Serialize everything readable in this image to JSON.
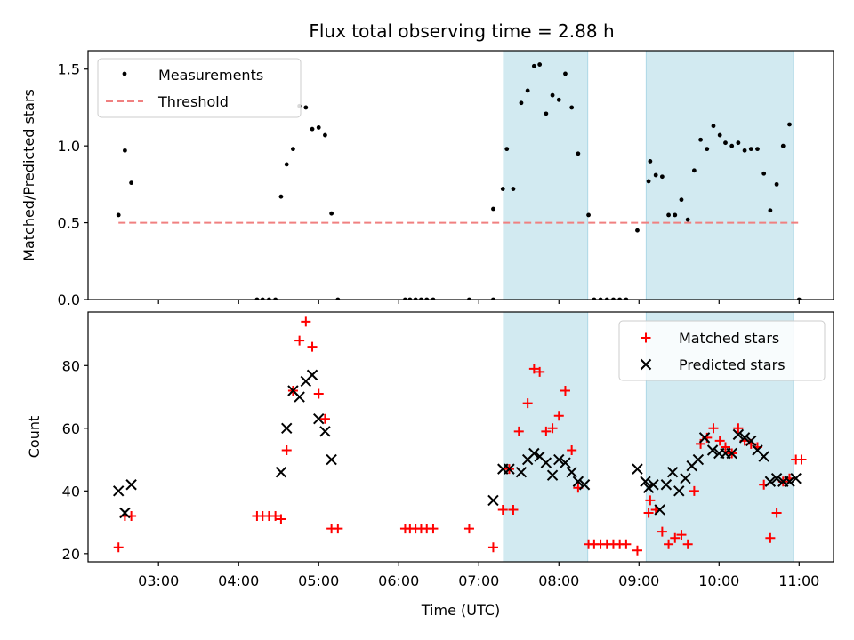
{
  "title": "Flux total observing time = 2.88 h",
  "colors": {
    "shade": "#add8e6",
    "threshold": "#f08080",
    "measurement": "#000000",
    "matched": "#ff0000",
    "predicted": "#000000"
  },
  "chart_data": [
    {
      "type": "scatter",
      "ylabel": "Matched/Predicted stars",
      "xlabel": "",
      "xlim": [
        2.12,
        11.43
      ],
      "ylim": [
        0,
        1.62
      ],
      "yticks": [
        {
          "value": 0.0,
          "label": "0.0"
        },
        {
          "value": 0.5,
          "label": "0.5"
        },
        {
          "value": 1.0,
          "label": "1.0"
        },
        {
          "value": 1.5,
          "label": "1.5"
        }
      ],
      "shaded_intervals": [
        [
          7.31,
          8.36
        ],
        [
          9.09,
          10.93
        ]
      ],
      "legend": {
        "placement": "top-left",
        "entries": [
          "Measurements",
          "Threshold"
        ]
      },
      "threshold": {
        "name": "Threshold",
        "value": 0.5,
        "x_range": [
          2.5,
          11.0
        ]
      },
      "series": [
        {
          "name": "Measurements",
          "marker": "dot",
          "points": [
            [
              2.5,
              0.55
            ],
            [
              2.58,
              0.97
            ],
            [
              2.66,
              0.76
            ],
            [
              4.23,
              0.0
            ],
            [
              4.3,
              0.0
            ],
            [
              4.38,
              0.0
            ],
            [
              4.46,
              0.0
            ],
            [
              4.53,
              0.67
            ],
            [
              4.6,
              0.88
            ],
            [
              4.68,
              0.98
            ],
            [
              4.76,
              1.26
            ],
            [
              4.84,
              1.25
            ],
            [
              4.92,
              1.11
            ],
            [
              5.0,
              1.12
            ],
            [
              5.08,
              1.07
            ],
            [
              5.16,
              0.56
            ],
            [
              5.24,
              0.0
            ],
            [
              6.08,
              0.0
            ],
            [
              6.14,
              0.0
            ],
            [
              6.21,
              0.0
            ],
            [
              6.28,
              0.0
            ],
            [
              6.35,
              0.0
            ],
            [
              6.43,
              0.0
            ],
            [
              6.88,
              0.0
            ],
            [
              7.18,
              0.59
            ],
            [
              7.18,
              0.0
            ],
            [
              7.3,
              0.72
            ],
            [
              7.35,
              0.98
            ],
            [
              7.43,
              0.72
            ],
            [
              7.53,
              1.28
            ],
            [
              7.61,
              1.36
            ],
            [
              7.69,
              1.52
            ],
            [
              7.76,
              1.53
            ],
            [
              7.84,
              1.21
            ],
            [
              7.92,
              1.33
            ],
            [
              8.0,
              1.3
            ],
            [
              8.08,
              1.47
            ],
            [
              8.16,
              1.25
            ],
            [
              8.24,
              0.95
            ],
            [
              8.37,
              0.55
            ],
            [
              8.44,
              0.0
            ],
            [
              8.52,
              0.0
            ],
            [
              8.6,
              0.0
            ],
            [
              8.68,
              0.0
            ],
            [
              8.76,
              0.0
            ],
            [
              8.84,
              0.0
            ],
            [
              8.98,
              0.45
            ],
            [
              9.12,
              0.77
            ],
            [
              9.14,
              0.9
            ],
            [
              9.21,
              0.81
            ],
            [
              9.29,
              0.8
            ],
            [
              9.37,
              0.55
            ],
            [
              9.45,
              0.55
            ],
            [
              9.53,
              0.65
            ],
            [
              9.61,
              0.52
            ],
            [
              9.69,
              0.84
            ],
            [
              9.77,
              1.04
            ],
            [
              9.85,
              0.98
            ],
            [
              9.93,
              1.13
            ],
            [
              10.01,
              1.07
            ],
            [
              10.08,
              1.02
            ],
            [
              10.16,
              1.0
            ],
            [
              10.24,
              1.02
            ],
            [
              10.32,
              0.97
            ],
            [
              10.4,
              0.98
            ],
            [
              10.48,
              0.98
            ],
            [
              10.56,
              0.82
            ],
            [
              10.64,
              0.58
            ],
            [
              10.72,
              0.75
            ],
            [
              10.8,
              1.0
            ],
            [
              10.88,
              1.14
            ],
            [
              11.0,
              0.0
            ]
          ]
        }
      ]
    },
    {
      "type": "scatter",
      "ylabel": "Count",
      "xlabel": "Time (UTC)",
      "xlim": [
        2.12,
        11.43
      ],
      "ylim": [
        17.4,
        97.1
      ],
      "yticks": [
        {
          "value": 20,
          "label": "20"
        },
        {
          "value": 40,
          "label": "40"
        },
        {
          "value": 60,
          "label": "60"
        },
        {
          "value": 80,
          "label": "80"
        }
      ],
      "xticks": [
        {
          "value": 3,
          "label": "03:00"
        },
        {
          "value": 4,
          "label": "04:00"
        },
        {
          "value": 5,
          "label": "05:00"
        },
        {
          "value": 6,
          "label": "06:00"
        },
        {
          "value": 7,
          "label": "07:00"
        },
        {
          "value": 8,
          "label": "08:00"
        },
        {
          "value": 9,
          "label": "09:00"
        },
        {
          "value": 10,
          "label": "10:00"
        },
        {
          "value": 11,
          "label": "11:00"
        }
      ],
      "shaded_intervals": [
        [
          7.31,
          8.36
        ],
        [
          9.09,
          10.93
        ]
      ],
      "legend": {
        "placement": "top-right",
        "entries": [
          "Matched stars",
          "Predicted stars"
        ]
      },
      "series": [
        {
          "name": "Matched stars",
          "marker": "plus",
          "points": [
            [
              2.5,
              22
            ],
            [
              2.58,
              32
            ],
            [
              2.66,
              32
            ],
            [
              4.23,
              32
            ],
            [
              4.3,
              32
            ],
            [
              4.38,
              32
            ],
            [
              4.46,
              32
            ],
            [
              4.53,
              31
            ],
            [
              4.6,
              53
            ],
            [
              4.68,
              72
            ],
            [
              4.76,
              88
            ],
            [
              4.84,
              94
            ],
            [
              4.92,
              86
            ],
            [
              5.0,
              71
            ],
            [
              5.08,
              63
            ],
            [
              5.16,
              28
            ],
            [
              5.24,
              28
            ],
            [
              6.08,
              28
            ],
            [
              6.14,
              28
            ],
            [
              6.21,
              28
            ],
            [
              6.28,
              28
            ],
            [
              6.35,
              28
            ],
            [
              6.43,
              28
            ],
            [
              6.88,
              28
            ],
            [
              7.18,
              22
            ],
            [
              7.3,
              34
            ],
            [
              7.38,
              47
            ],
            [
              7.43,
              34
            ],
            [
              7.5,
              59
            ],
            [
              7.61,
              68
            ],
            [
              7.69,
              79
            ],
            [
              7.76,
              78
            ],
            [
              7.84,
              59
            ],
            [
              7.92,
              60
            ],
            [
              8.0,
              64
            ],
            [
              8.08,
              72
            ],
            [
              8.16,
              53
            ],
            [
              8.24,
              41
            ],
            [
              8.37,
              23
            ],
            [
              8.44,
              23
            ],
            [
              8.52,
              23
            ],
            [
              8.6,
              23
            ],
            [
              8.68,
              23
            ],
            [
              8.76,
              23
            ],
            [
              8.84,
              23
            ],
            [
              8.98,
              21
            ],
            [
              9.12,
              33
            ],
            [
              9.14,
              37
            ],
            [
              9.21,
              34
            ],
            [
              9.29,
              27
            ],
            [
              9.37,
              23
            ],
            [
              9.45,
              25
            ],
            [
              9.53,
              26
            ],
            [
              9.61,
              23
            ],
            [
              9.69,
              40
            ],
            [
              9.77,
              55
            ],
            [
              9.85,
              57
            ],
            [
              9.93,
              60
            ],
            [
              10.01,
              56
            ],
            [
              10.08,
              54
            ],
            [
              10.16,
              52
            ],
            [
              10.24,
              60
            ],
            [
              10.32,
              56
            ],
            [
              10.4,
              55
            ],
            [
              10.48,
              54
            ],
            [
              10.56,
              42
            ],
            [
              10.64,
              25
            ],
            [
              10.72,
              33
            ],
            [
              10.8,
              43
            ],
            [
              10.88,
              44
            ],
            [
              10.96,
              50
            ],
            [
              11.03,
              50
            ]
          ]
        },
        {
          "name": "Predicted stars",
          "marker": "x",
          "points": [
            [
              2.5,
              40
            ],
            [
              2.58,
              33
            ],
            [
              2.66,
              42
            ],
            [
              4.53,
              46
            ],
            [
              4.6,
              60
            ],
            [
              4.68,
              72
            ],
            [
              4.76,
              70
            ],
            [
              4.84,
              75
            ],
            [
              4.92,
              77
            ],
            [
              5.0,
              63
            ],
            [
              5.08,
              59
            ],
            [
              5.16,
              50
            ],
            [
              7.18,
              37
            ],
            [
              7.3,
              47
            ],
            [
              7.38,
              47
            ],
            [
              7.53,
              46
            ],
            [
              7.61,
              50
            ],
            [
              7.69,
              52
            ],
            [
              7.76,
              51
            ],
            [
              7.84,
              49
            ],
            [
              7.92,
              45
            ],
            [
              8.0,
              50
            ],
            [
              8.08,
              49
            ],
            [
              8.16,
              46
            ],
            [
              8.24,
              43
            ],
            [
              8.32,
              42
            ],
            [
              8.98,
              47
            ],
            [
              9.08,
              43
            ],
            [
              9.12,
              41
            ],
            [
              9.18,
              42
            ],
            [
              9.26,
              34
            ],
            [
              9.34,
              42
            ],
            [
              9.42,
              46
            ],
            [
              9.5,
              40
            ],
            [
              9.58,
              44
            ],
            [
              9.66,
              48
            ],
            [
              9.74,
              50
            ],
            [
              9.82,
              57
            ],
            [
              9.92,
              53
            ],
            [
              10.0,
              52
            ],
            [
              10.08,
              52
            ],
            [
              10.16,
              52
            ],
            [
              10.24,
              58
            ],
            [
              10.32,
              57
            ],
            [
              10.4,
              56
            ],
            [
              10.48,
              53
            ],
            [
              10.56,
              51
            ],
            [
              10.64,
              43
            ],
            [
              10.72,
              44
            ],
            [
              10.8,
              43
            ],
            [
              10.88,
              43
            ],
            [
              10.96,
              44
            ]
          ]
        }
      ]
    }
  ]
}
